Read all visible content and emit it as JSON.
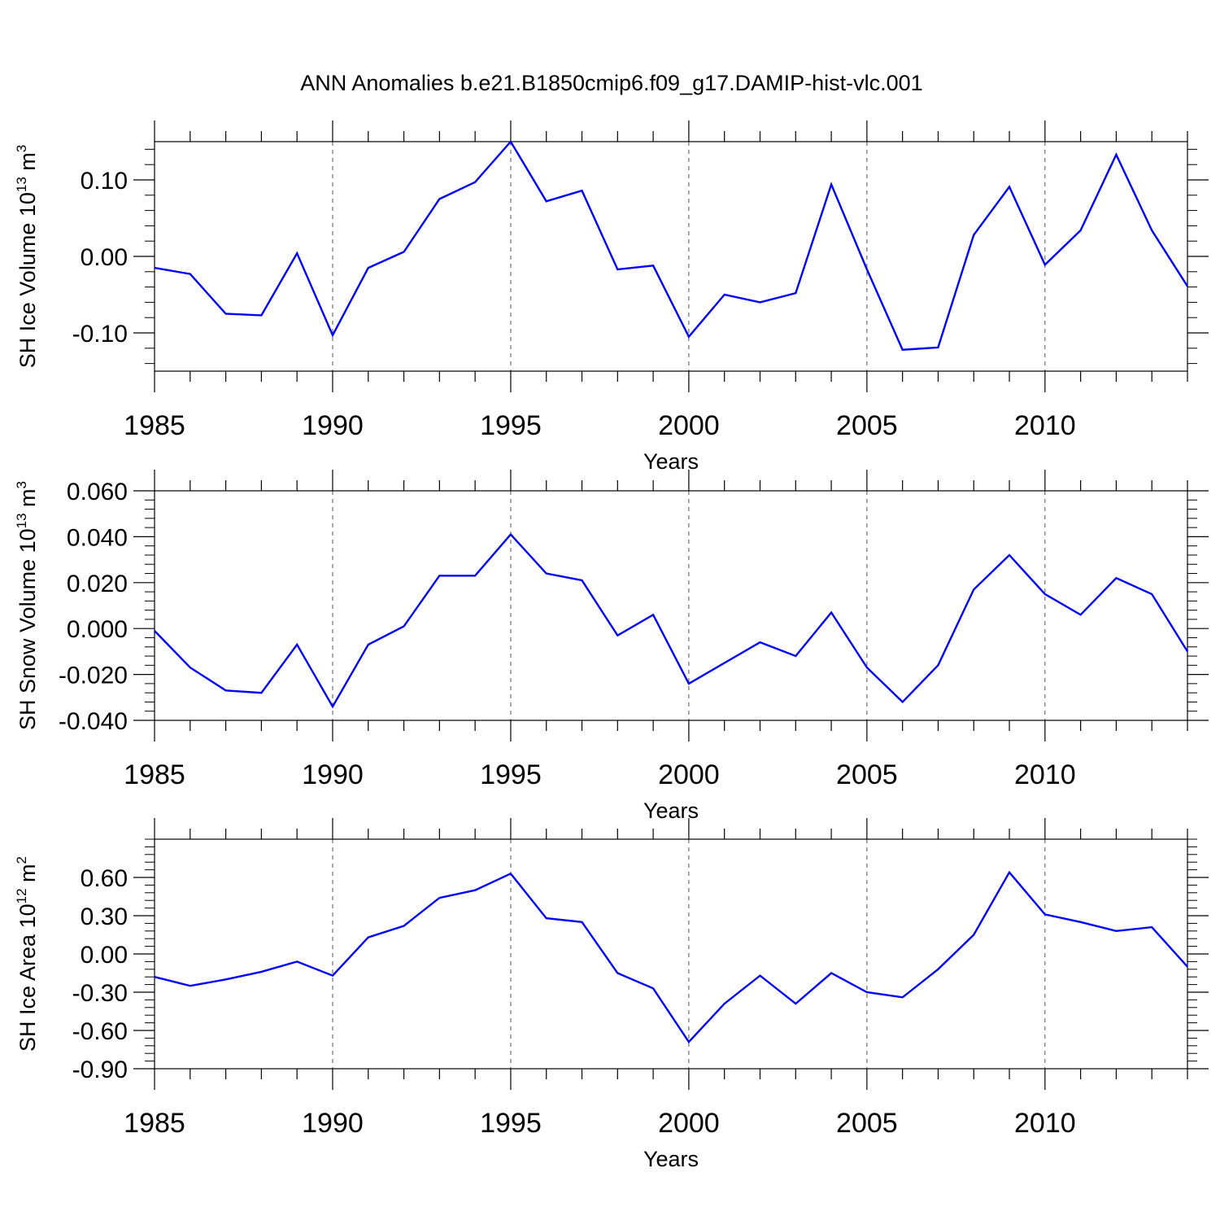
{
  "title": "ANN Anomalies b.e21.B1850cmip6.f09_g17.DAMIP-hist-vlc.001",
  "colors": {
    "series": "#0000ff",
    "axis": "#000000",
    "grid": "#555555"
  },
  "chart_data": [
    {
      "type": "line",
      "ylabel": "SH Ice Volume 10",
      "ylabel_exponent": "13",
      "ylabel_unit": "m",
      "ylabel_unit_exponent": "3",
      "xlabel": "Years",
      "xlim": [
        1985,
        2014
      ],
      "ylim": [
        -0.15,
        0.15
      ],
      "x_ticks": [
        1985,
        1990,
        1995,
        2000,
        2005,
        2010
      ],
      "x_tick_labels": [
        "1985",
        "1990",
        "1995",
        "2000",
        "2005",
        "2010"
      ],
      "y_ticks": [
        0.1,
        0.0,
        -0.1
      ],
      "y_tick_labels": [
        "0.10",
        "0.00",
        "-0.10"
      ],
      "grid": "vertical dashed at major x ticks",
      "series": [
        {
          "x": [
            1985,
            1986,
            1987,
            1988,
            1989,
            1990,
            1991,
            1992,
            1993,
            1994,
            1995,
            1996,
            1997,
            1998,
            1999,
            2000,
            2001,
            2002,
            2003,
            2004,
            2005,
            2006,
            2007,
            2008,
            2009,
            2010,
            2011,
            2012,
            2013,
            2014
          ],
          "values": [
            -0.015,
            -0.023,
            -0.075,
            -0.077,
            0.004,
            -0.103,
            -0.015,
            0.006,
            0.075,
            0.097,
            0.15,
            0.072,
            0.086,
            -0.017,
            -0.012,
            -0.105,
            -0.05,
            -0.06,
            -0.048,
            0.094,
            -0.017,
            -0.122,
            -0.119,
            0.028,
            0.091,
            -0.011,
            0.034,
            0.133,
            0.034,
            -0.039
          ]
        }
      ]
    },
    {
      "type": "line",
      "ylabel": "SH Snow Volume 10",
      "ylabel_exponent": "13",
      "ylabel_unit": "m",
      "ylabel_unit_exponent": "3",
      "xlabel": "Years",
      "xlim": [
        1985,
        2014
      ],
      "ylim": [
        -0.04,
        0.06
      ],
      "x_ticks": [
        1985,
        1990,
        1995,
        2000,
        2005,
        2010
      ],
      "x_tick_labels": [
        "1985",
        "1990",
        "1995",
        "2000",
        "2005",
        "2010"
      ],
      "y_ticks": [
        0.06,
        0.04,
        0.02,
        0.0,
        -0.02,
        -0.04
      ],
      "y_tick_labels": [
        "0.060",
        "0.040",
        "0.020",
        "0.000",
        "-0.020",
        "-0.040"
      ],
      "grid": "vertical dashed at major x ticks",
      "series": [
        {
          "x": [
            1985,
            1986,
            1987,
            1988,
            1989,
            1990,
            1991,
            1992,
            1993,
            1994,
            1995,
            1996,
            1997,
            1998,
            1999,
            2000,
            2001,
            2002,
            2003,
            2004,
            2005,
            2006,
            2007,
            2008,
            2009,
            2010,
            2011,
            2012,
            2013,
            2014
          ],
          "values": [
            -0.001,
            -0.017,
            -0.027,
            -0.028,
            -0.007,
            -0.034,
            -0.007,
            0.001,
            0.023,
            0.023,
            0.041,
            0.024,
            0.021,
            -0.003,
            0.006,
            -0.024,
            -0.015,
            -0.006,
            -0.012,
            0.007,
            -0.017,
            -0.032,
            -0.016,
            0.017,
            0.032,
            0.015,
            0.006,
            0.022,
            0.015,
            -0.01
          ]
        }
      ]
    },
    {
      "type": "line",
      "ylabel": "SH Ice Area 10",
      "ylabel_exponent": "12",
      "ylabel_unit": "m",
      "ylabel_unit_exponent": "2",
      "xlabel": "Years",
      "xlim": [
        1985,
        2014
      ],
      "ylim": [
        -0.9,
        0.9
      ],
      "x_ticks": [
        1985,
        1990,
        1995,
        2000,
        2005,
        2010
      ],
      "x_tick_labels": [
        "1985",
        "1990",
        "1995",
        "2000",
        "2005",
        "2010"
      ],
      "y_ticks": [
        0.6,
        0.3,
        0.0,
        -0.3,
        -0.6,
        -0.9
      ],
      "y_tick_labels": [
        "0.60",
        "0.30",
        "0.00",
        "-0.30",
        "-0.60",
        "-0.90"
      ],
      "grid": "vertical dashed at major x ticks",
      "series": [
        {
          "x": [
            1985,
            1986,
            1987,
            1988,
            1989,
            1990,
            1991,
            1992,
            1993,
            1994,
            1995,
            1996,
            1997,
            1998,
            1999,
            2000,
            2001,
            2002,
            2003,
            2004,
            2005,
            2006,
            2007,
            2008,
            2009,
            2010,
            2011,
            2012,
            2013,
            2014
          ],
          "values": [
            -0.18,
            -0.25,
            -0.2,
            -0.14,
            -0.06,
            -0.17,
            0.13,
            0.22,
            0.44,
            0.5,
            0.63,
            0.28,
            0.25,
            -0.15,
            -0.27,
            -0.69,
            -0.39,
            -0.17,
            -0.39,
            -0.15,
            -0.3,
            -0.34,
            -0.12,
            0.15,
            0.64,
            0.31,
            0.25,
            0.18,
            0.21,
            -0.1
          ]
        }
      ]
    }
  ]
}
